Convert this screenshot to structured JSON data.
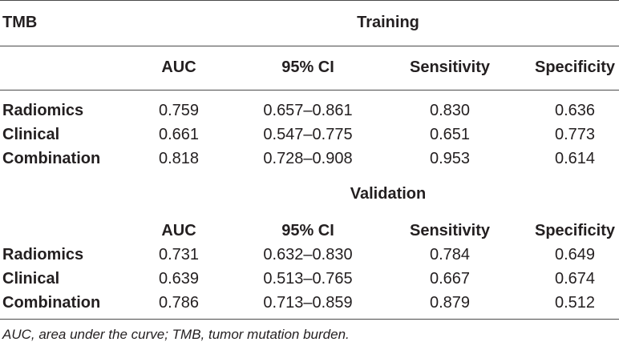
{
  "table": {
    "corner_label": "TMB",
    "columns": [
      "AUC",
      "95% CI",
      "Sensitivity",
      "Specificity"
    ],
    "sections": [
      {
        "title": "Training",
        "rows": [
          {
            "label": "Radiomics",
            "auc": "0.759",
            "ci": "0.657–0.861",
            "sensitivity": "0.830",
            "specificity": "0.636"
          },
          {
            "label": "Clinical",
            "auc": "0.661",
            "ci": "0.547–0.775",
            "sensitivity": "0.651",
            "specificity": "0.773"
          },
          {
            "label": "Combination",
            "auc": "0.818",
            "ci": "0.728–0.908",
            "sensitivity": "0.953",
            "specificity": "0.614"
          }
        ]
      },
      {
        "title": "Validation",
        "rows": [
          {
            "label": "Radiomics",
            "auc": "0.731",
            "ci": "0.632–0.830",
            "sensitivity": "0.784",
            "specificity": "0.649"
          },
          {
            "label": "Clinical",
            "auc": "0.639",
            "ci": "0.513–0.765",
            "sensitivity": "0.667",
            "specificity": "0.674"
          },
          {
            "label": "Combination",
            "auc": "0.786",
            "ci": "0.713–0.859",
            "sensitivity": "0.879",
            "specificity": "0.512"
          }
        ]
      }
    ],
    "footnote": "AUC, area under the curve; TMB, tumor mutation burden."
  }
}
